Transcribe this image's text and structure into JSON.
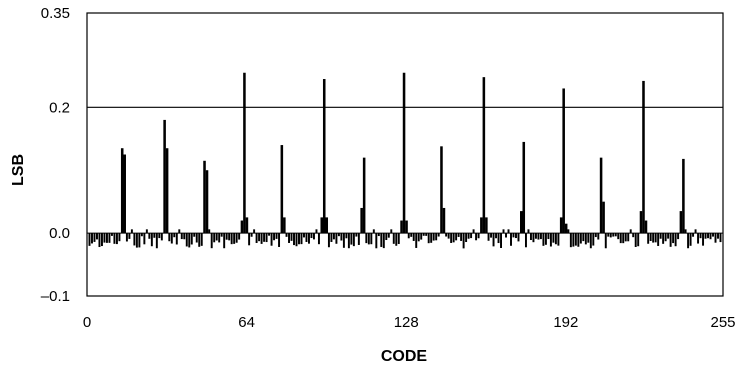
{
  "chart_data": {
    "type": "bar",
    "title": "",
    "xlabel": "CODE",
    "ylabel": "LSB",
    "xlim": [
      0,
      255
    ],
    "ylim": [
      -0.1,
      0.35
    ],
    "x_ticks": [
      0,
      64,
      128,
      192,
      255
    ],
    "x_tick_labels": [
      "0",
      "64",
      "128",
      "192",
      "255"
    ],
    "y_ticks": [
      0.35,
      0.2,
      0.0,
      -0.1
    ],
    "y_tick_labels": [
      "0.35",
      "0.2",
      "0.0",
      "–0.1"
    ],
    "reference_line": 0.2,
    "grid": false,
    "bar_color": "#000000",
    "series": [
      {
        "x": [
          14,
          15,
          31,
          32,
          47,
          48,
          62,
          63,
          64,
          78,
          79,
          94,
          95,
          96,
          110,
          111,
          126,
          127,
          128,
          142,
          143,
          158,
          159,
          160,
          174,
          175,
          190,
          191,
          192,
          206,
          207,
          222,
          223,
          224,
          238,
          239
        ],
        "values": [
          0.135,
          0.125,
          0.18,
          0.135,
          0.115,
          0.1,
          0.02,
          0.255,
          0.025,
          0.14,
          0.025,
          0.025,
          0.245,
          0.025,
          0.04,
          0.12,
          0.02,
          0.255,
          0.02,
          0.138,
          0.04,
          0.025,
          0.248,
          0.025,
          0.035,
          0.145,
          0.025,
          0.23,
          0.015,
          0.12,
          0.05,
          0.035,
          0.242,
          0.02,
          0.035,
          0.118
        ]
      }
    ]
  }
}
